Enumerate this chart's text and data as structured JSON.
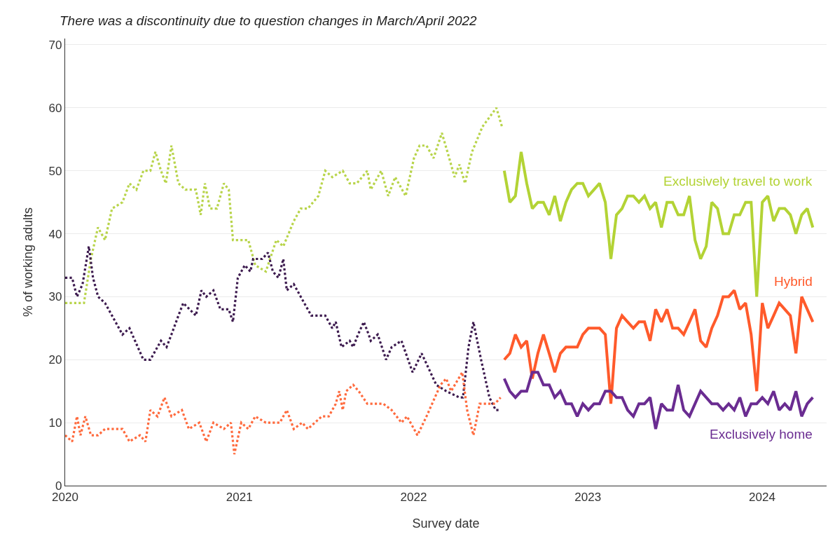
{
  "chart_data": {
    "type": "line",
    "title": "There was a discontinuity due to question changes in March/April 2022",
    "xlabel": "Survey date",
    "ylabel": "% of working adults",
    "xlim": [
      2020,
      2024.37
    ],
    "xticks": [
      2020,
      2021,
      2022,
      2023,
      2024
    ],
    "ylim": [
      0,
      71
    ],
    "yticks": [
      0,
      10,
      20,
      30,
      40,
      50,
      60,
      70
    ],
    "grid": "y",
    "series": [
      {
        "color": "#b8d44a",
        "line_style": "dotted",
        "x": [
          2020.0,
          2020.108,
          2020.148,
          2020.188,
          2020.229,
          2020.269,
          2020.329,
          2020.369,
          2020.409,
          2020.449,
          2020.489,
          2020.518,
          2020.55,
          2020.578,
          2020.61,
          2020.65,
          2020.69,
          2020.75,
          2020.778,
          2020.802,
          2020.831,
          2020.871,
          2020.911,
          2020.939,
          2020.963,
          2021.051,
          2021.091,
          2021.152,
          2021.212,
          2021.252,
          2021.312,
          2021.352,
          2021.393,
          2021.453,
          2021.493,
          2021.533,
          2021.593,
          2021.633,
          2021.674,
          2021.734,
          2021.754,
          2021.814,
          2021.854,
          2021.894,
          2021.934,
          2021.954,
          2022.002,
          2022.034,
          2022.074,
          2022.114,
          2022.162,
          2022.194,
          2022.235,
          2022.263,
          2022.295,
          2022.335,
          2022.395,
          2022.475,
          2022.507
        ],
        "values": [
          29,
          29,
          36,
          41,
          39,
          44,
          45,
          48,
          47,
          50,
          50,
          53,
          50,
          48,
          54,
          48,
          47,
          47,
          43,
          48,
          44,
          44,
          48,
          47,
          39,
          39,
          35,
          34,
          39,
          38,
          42,
          44,
          44,
          46,
          50,
          49,
          50,
          48,
          48,
          50,
          47,
          50,
          46,
          49,
          47,
          46,
          52,
          54,
          54,
          52,
          56,
          53,
          49,
          51,
          48,
          53,
          57,
          60,
          57
        ]
      },
      {
        "color": "#3d1b4f",
        "line_style": "dotted",
        "x": [
          2020.0,
          2020.04,
          2020.068,
          2020.1,
          2020.136,
          2020.16,
          2020.189,
          2020.229,
          2020.269,
          2020.329,
          2020.369,
          2020.449,
          2020.489,
          2020.55,
          2020.582,
          2020.61,
          2020.65,
          2020.678,
          2020.75,
          2020.782,
          2020.81,
          2020.851,
          2020.891,
          2020.939,
          2020.963,
          2020.991,
          2021.031,
          2021.063,
          2021.079,
          2021.131,
          2021.164,
          2021.192,
          2021.224,
          2021.252,
          2021.272,
          2021.312,
          2021.372,
          2021.413,
          2021.493,
          2021.533,
          2021.553,
          2021.586,
          2021.633,
          2021.653,
          2021.681,
          2021.714,
          2021.742,
          2021.754,
          2021.794,
          2021.842,
          2021.874,
          2021.93,
          2021.994,
          2022.046,
          2022.13,
          2022.187,
          2022.263,
          2022.283,
          2022.315,
          2022.343,
          2022.387,
          2022.435,
          2022.471,
          2022.499
        ],
        "values": [
          33,
          33,
          30,
          32,
          38,
          33,
          30,
          29,
          27,
          24,
          25,
          20,
          20,
          23,
          22,
          24,
          27,
          29,
          27,
          31,
          30,
          31,
          28,
          28,
          26,
          33,
          35,
          34,
          36,
          36,
          37,
          34,
          33,
          36,
          31,
          32,
          29,
          27,
          27,
          25,
          26,
          22,
          23,
          22,
          24,
          26,
          24,
          23,
          24,
          20,
          22,
          23,
          18,
          21,
          16,
          15,
          14,
          14,
          22,
          26,
          20,
          14,
          12,
          12
        ]
      },
      {
        "color": "#ff6a3d",
        "line_style": "dotted",
        "x": [
          2020.0,
          2020.04,
          2020.068,
          2020.088,
          2020.116,
          2020.148,
          2020.189,
          2020.229,
          2020.329,
          2020.369,
          2020.429,
          2020.461,
          2020.489,
          2020.53,
          2020.57,
          2020.61,
          2020.67,
          2020.71,
          2020.77,
          2020.81,
          2020.851,
          2020.911,
          2020.951,
          2020.971,
          2021.011,
          2021.051,
          2021.091,
          2021.152,
          2021.232,
          2021.272,
          2021.312,
          2021.36,
          2021.393,
          2021.473,
          2021.513,
          2021.553,
          2021.573,
          2021.593,
          2021.613,
          2021.653,
          2021.685,
          2021.734,
          2021.774,
          2021.826,
          2021.874,
          2021.93,
          2021.962,
          2022.022,
          2022.074,
          2022.154,
          2022.187,
          2022.215,
          2022.279,
          2022.307,
          2022.343,
          2022.379,
          2022.435,
          2022.467,
          2022.499
        ],
        "values": [
          8,
          7,
          11,
          8,
          11,
          8,
          8,
          9,
          9,
          7,
          8,
          7,
          12,
          11,
          14,
          11,
          12,
          9,
          10,
          7,
          10,
          9,
          10,
          5,
          10,
          9,
          11,
          10,
          10,
          12,
          9,
          10,
          9,
          11,
          11,
          13,
          15,
          12,
          15,
          16,
          15,
          13,
          13,
          13,
          12,
          10,
          11,
          8,
          11,
          16,
          17,
          15,
          18,
          12,
          8,
          13,
          13,
          13,
          14
        ]
      },
      {
        "name": "Exclusively travel to work",
        "color": "#b3d335",
        "line_style": "solid",
        "x": [
          2022.52,
          2022.552,
          2022.584,
          2022.617,
          2022.649,
          2022.681,
          2022.713,
          2022.745,
          2022.778,
          2022.81,
          2022.842,
          2022.874,
          2022.906,
          2022.939,
          2022.971,
          2023.003,
          2023.035,
          2023.067,
          2023.1,
          2023.132,
          2023.164,
          2023.196,
          2023.228,
          2023.261,
          2023.293,
          2023.325,
          2023.357,
          2023.389,
          2023.422,
          2023.454,
          2023.486,
          2023.518,
          2023.55,
          2023.583,
          2023.615,
          2023.647,
          2023.679,
          2023.711,
          2023.744,
          2023.776,
          2023.808,
          2023.84,
          2023.872,
          2023.905,
          2023.937,
          2023.969,
          2024.001,
          2024.033,
          2024.066,
          2024.098,
          2024.13,
          2024.162,
          2024.194,
          2024.227,
          2024.259,
          2024.291
        ],
        "values": [
          50,
          45,
          46,
          53,
          48,
          44,
          45,
          45,
          43,
          46,
          42,
          45,
          47,
          48,
          48,
          46,
          47,
          48,
          45,
          36,
          43,
          44,
          46,
          46,
          45,
          46,
          44,
          45,
          41,
          45,
          45,
          43,
          43,
          46,
          39,
          36,
          38,
          45,
          44,
          40,
          40,
          43,
          43,
          45,
          45,
          30,
          45,
          46,
          42,
          44,
          44,
          43,
          40,
          43,
          44,
          41
        ]
      },
      {
        "name": "Hybrid",
        "color": "#ff5a2b",
        "line_style": "solid",
        "x": [
          2022.52,
          2022.552,
          2022.584,
          2022.617,
          2022.649,
          2022.681,
          2022.713,
          2022.745,
          2022.778,
          2022.81,
          2022.842,
          2022.874,
          2022.906,
          2022.939,
          2022.971,
          2023.003,
          2023.035,
          2023.067,
          2023.1,
          2023.132,
          2023.164,
          2023.196,
          2023.228,
          2023.261,
          2023.293,
          2023.325,
          2023.357,
          2023.389,
          2023.422,
          2023.454,
          2023.486,
          2023.518,
          2023.55,
          2023.583,
          2023.615,
          2023.647,
          2023.679,
          2023.711,
          2023.744,
          2023.776,
          2023.808,
          2023.84,
          2023.872,
          2023.905,
          2023.937,
          2023.969,
          2024.001,
          2024.033,
          2024.066,
          2024.098,
          2024.13,
          2024.162,
          2024.194,
          2024.227,
          2024.259,
          2024.291
        ],
        "values": [
          20,
          21,
          24,
          22,
          23,
          17,
          21,
          24,
          21,
          18,
          21,
          22,
          22,
          22,
          24,
          25,
          25,
          25,
          24,
          13,
          25,
          27,
          26,
          25,
          26,
          26,
          23,
          28,
          26,
          28,
          25,
          25,
          24,
          26,
          28,
          23,
          22,
          25,
          27,
          30,
          30,
          31,
          28,
          29,
          24,
          15,
          29,
          25,
          27,
          29,
          28,
          27,
          21,
          30,
          28,
          26
        ]
      },
      {
        "name": "Exclusively home",
        "color": "#6a2c91",
        "line_style": "solid",
        "x": [
          2022.52,
          2022.552,
          2022.584,
          2022.617,
          2022.649,
          2022.681,
          2022.713,
          2022.745,
          2022.778,
          2022.81,
          2022.842,
          2022.874,
          2022.906,
          2022.939,
          2022.971,
          2023.003,
          2023.035,
          2023.067,
          2023.1,
          2023.132,
          2023.164,
          2023.196,
          2023.228,
          2023.261,
          2023.293,
          2023.325,
          2023.357,
          2023.389,
          2023.422,
          2023.454,
          2023.486,
          2023.518,
          2023.55,
          2023.583,
          2023.615,
          2023.647,
          2023.679,
          2023.711,
          2023.744,
          2023.776,
          2023.808,
          2023.84,
          2023.872,
          2023.905,
          2023.937,
          2023.969,
          2024.001,
          2024.033,
          2024.066,
          2024.098,
          2024.13,
          2024.162,
          2024.194,
          2024.227,
          2024.259,
          2024.291
        ],
        "values": [
          17,
          15,
          14,
          15,
          15,
          18,
          18,
          16,
          16,
          14,
          15,
          13,
          13,
          11,
          13,
          12,
          13,
          13,
          15,
          15,
          14,
          14,
          12,
          11,
          13,
          13,
          14,
          9,
          13,
          12,
          12,
          16,
          12,
          11,
          13,
          15,
          14,
          13,
          13,
          12,
          13,
          12,
          14,
          11,
          13,
          13,
          14,
          13,
          15,
          12,
          13,
          12,
          15,
          11,
          13,
          14
        ]
      }
    ]
  }
}
